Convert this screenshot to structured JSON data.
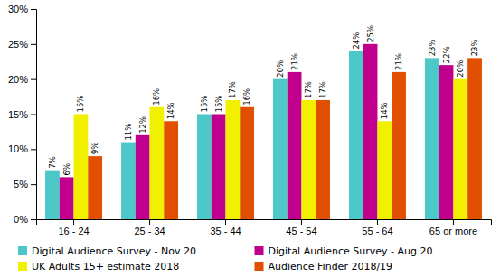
{
  "chart_data": {
    "type": "bar",
    "categories": [
      "16 - 24",
      "25 - 34",
      "35 - 44",
      "45 - 54",
      "55 - 64",
      "65 or more"
    ],
    "series": [
      {
        "name": "Digital Audience Survey - Nov 20",
        "color": "#4DC8C8",
        "values": [
          0.07,
          0.11,
          0.15,
          0.2,
          0.24,
          0.23
        ],
        "value_labels": [
          "7%",
          "11%",
          "15%",
          "20%",
          "24%",
          "23%"
        ]
      },
      {
        "name": "Digital Audience Survey - Aug 20",
        "color": "#C0008C",
        "values": [
          0.06,
          0.12,
          0.15,
          0.21,
          0.25,
          0.22
        ],
        "value_labels": [
          "6%",
          "12%",
          "15%",
          "21%",
          "25%",
          "22%"
        ]
      },
      {
        "name": "UK Adults 15+ estimate 2018",
        "color": "#F0F000",
        "values": [
          0.15,
          0.16,
          0.17,
          0.17,
          0.14,
          0.2
        ],
        "value_labels": [
          "15%",
          "16%",
          "17%",
          "17%",
          "14%",
          "20%"
        ]
      },
      {
        "name": "Audience Finder 2018/19",
        "color": "#E05000",
        "values": [
          0.09,
          0.14,
          0.16,
          0.17,
          0.21,
          0.23
        ],
        "value_labels": [
          "9%",
          "14%",
          "16%",
          "17%",
          "21%",
          "23%"
        ]
      }
    ],
    "ylim": [
      0,
      0.3
    ],
    "yticks": [
      {
        "value": 0,
        "label": "0%"
      },
      {
        "value": 0.05,
        "label": "5%"
      },
      {
        "value": 0.1,
        "label": "10%"
      },
      {
        "value": 0.15,
        "label": "15%"
      },
      {
        "value": 0.2,
        "label": "20%"
      },
      {
        "value": 0.25,
        "label": "25%"
      },
      {
        "value": 0.3,
        "label": "30%"
      }
    ],
    "grid": false,
    "legend": "bottom",
    "data_labels": true
  }
}
